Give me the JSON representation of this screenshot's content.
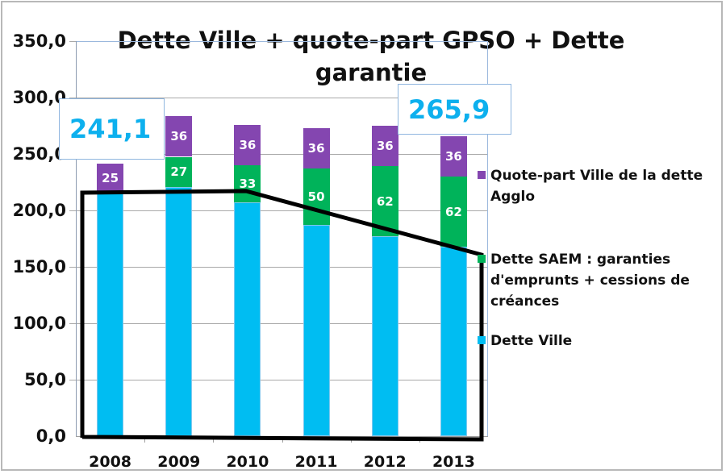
{
  "chart_data": {
    "type": "bar",
    "stacked": true,
    "title": "Dette Ville + quote-part GPSO + Dette garantie SAEM",
    "title_lines": [
      "Dette Ville + quote-part GPSO + Dette garantie",
      "SAEM"
    ],
    "xlabel": "",
    "ylabel": "",
    "ylim": [
      0,
      350
    ],
    "yticks": [
      "0,0",
      "50,0",
      "100,0",
      "150,0",
      "200,0",
      "250,0",
      "300,0",
      "350,0"
    ],
    "grid": true,
    "legend_position": "right",
    "categories": [
      "2008",
      "2009",
      "2010",
      "2011",
      "2012",
      "2013"
    ],
    "series": [
      {
        "name": "Dette Ville",
        "color": "#00bdf2",
        "values": [
          216.1,
          220.5,
          207.0,
          187.0,
          177.0,
          167.9
        ],
        "labels": [
          "",
          "",
          "",
          "",
          "",
          ""
        ]
      },
      {
        "name": "Dette SAEM : garanties d'emprunts + cessions de créances",
        "color": "#00b35a",
        "values": [
          0,
          27,
          33,
          50,
          62,
          62
        ],
        "labels": [
          "",
          "27",
          "33",
          "50",
          "62",
          "62"
        ]
      },
      {
        "name": "Quote-part Ville de la dette Agglo",
        "color": "#8446b0",
        "values": [
          25,
          36,
          36,
          36,
          36,
          36
        ],
        "labels": [
          "25",
          "36",
          "36",
          "36",
          "36",
          "36"
        ]
      }
    ],
    "totals": [
      241.1,
      283.5,
      276.0,
      273.0,
      275.0,
      265.9
    ],
    "annotations": [
      {
        "text": "241,1",
        "target": "2008",
        "color": "#0db0ee"
      },
      {
        "text": "265,9",
        "target": "2013",
        "color": "#0db0ee"
      }
    ],
    "overlay_shape": "black hand-drawn polygon outlining Dette Ville portion, from 2008 top (~216) through 2010 (~216) down to 2013 (~160)"
  },
  "legend": {
    "items": [
      {
        "label": "Quote-part Ville de la dette Agglo",
        "color": "#8446b0"
      },
      {
        "label": "Dette SAEM : garanties d'emprunts + cessions de créances",
        "color": "#00b35a"
      },
      {
        "label": "Dette Ville",
        "color": "#00bdf2"
      }
    ]
  },
  "callouts": {
    "first": "241,1",
    "last": "265,9"
  }
}
